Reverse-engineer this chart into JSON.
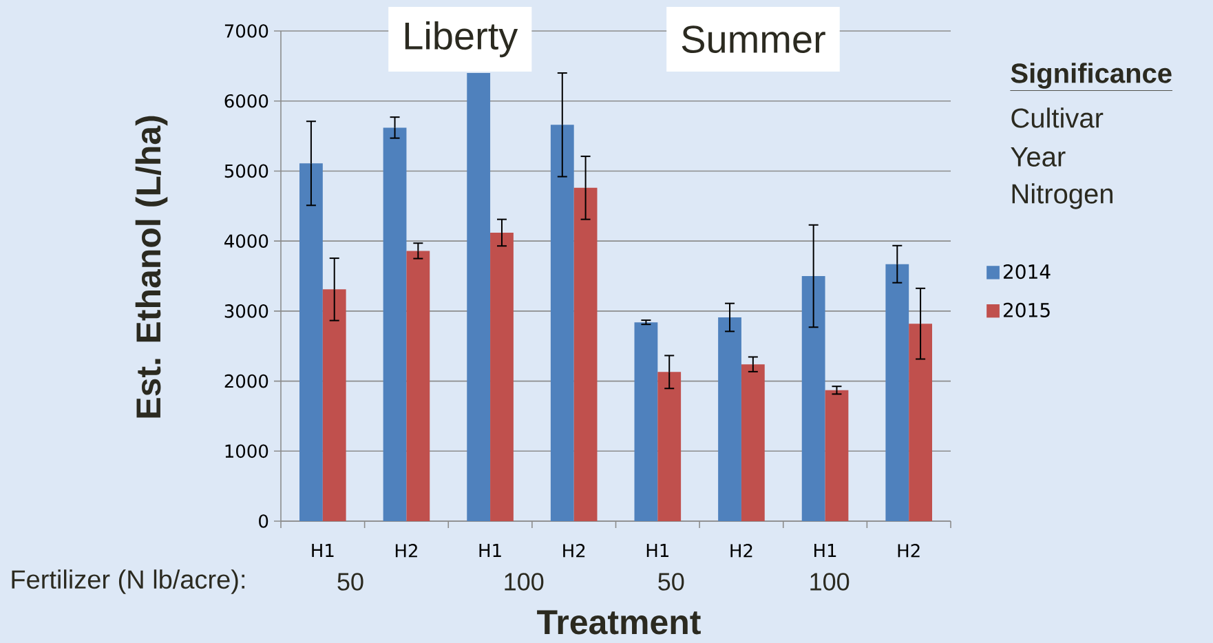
{
  "chart_data": {
    "type": "bar",
    "ylabel": "Est. Ethanol (L/ha)",
    "xlabel": "Treatment",
    "categories": [
      "H1",
      "H2",
      "H1",
      "H2",
      "H1",
      "H2",
      "H1",
      "H2"
    ],
    "series": [
      {
        "name": "2014",
        "color": "#4f81bd",
        "values": [
          5110,
          5620,
          6400,
          5660,
          2840,
          2910,
          3500,
          3670
        ],
        "errors": [
          600,
          150,
          null,
          740,
          30,
          200,
          730,
          265
        ]
      },
      {
        "name": "2015",
        "color": "#c0504d",
        "values": [
          3310,
          3860,
          4120,
          4760,
          2130,
          2240,
          1870,
          2820
        ],
        "errors": [
          445,
          110,
          190,
          450,
          235,
          105,
          55,
          505
        ]
      }
    ],
    "annotations": [
      "Liberty",
      "Summer",
      "Significance",
      "Cultivar",
      "Year",
      "Nitrogen",
      "Fertilizer (N lb/acre):",
      "50",
      "100",
      "50",
      "100"
    ],
    "ylim": [
      0,
      7000
    ],
    "yticks": [
      0,
      1000,
      2000,
      3000,
      4000,
      5000,
      6000,
      7000
    ],
    "grid": "y",
    "legend": "right"
  }
}
